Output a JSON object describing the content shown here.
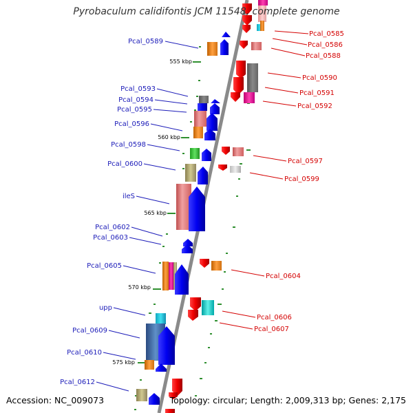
{
  "title": "Pyrobaculum calidifontis JCM 11548, complete genome",
  "footer": {
    "accession": "Accession: NC_009073",
    "summary": "Topology: circular; Length: 2,009,313 bp; Genes: 2,175"
  },
  "colors": {
    "forward_label": "#1a1ab8",
    "reverse_label": "#d40000",
    "backbone": "#8a8a8a",
    "tick": "#2f8f2f"
  },
  "kbp_ticks": [
    "555 kbp",
    "560 kbp",
    "565 kbp",
    "570 kbp",
    "575 kbp"
  ],
  "genes_forward": [
    "Pcal_0589",
    "Pcal_0593",
    "Pcal_0594",
    "Pcal_0595",
    "Pcal_0596",
    "Pcal_0598",
    "Pcal_0600",
    "ileS",
    "Pcal_0602",
    "Pcal_0603",
    "Pcal_0605",
    "upp",
    "Pcal_0609",
    "Pcal_0610",
    "Pcal_0612"
  ],
  "genes_reverse": [
    "Pcal_0585",
    "Pcal_0586",
    "Pcal_0588",
    "Pcal_0590",
    "Pcal_0591",
    "Pcal_0592",
    "Pcal_0597",
    "Pcal_0599",
    "Pcal_0604",
    "Pcal_0606",
    "Pcal_0607"
  ]
}
